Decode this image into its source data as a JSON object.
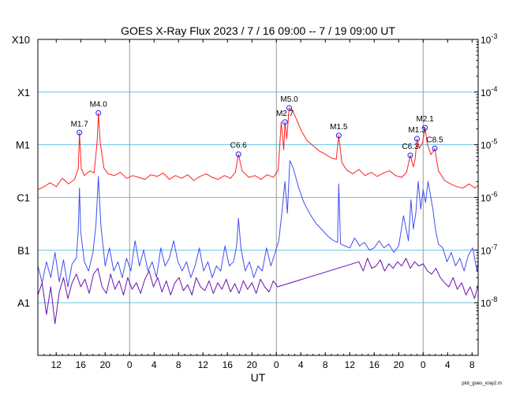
{
  "chart_data": {
    "type": "line",
    "title": "GOES X-Ray Flux   2023  /  7  /  16    09:00 --  7  /  19   09:00    UT",
    "xlabel": "UT",
    "footer": "plot_goes_xray2.m",
    "x_range_hours": [
      0,
      72
    ],
    "x_ticks": [
      {
        "h": 3,
        "label": "12"
      },
      {
        "h": 7,
        "label": "16"
      },
      {
        "h": 11,
        "label": "20"
      },
      {
        "h": 15,
        "label": "0"
      },
      {
        "h": 19,
        "label": "4"
      },
      {
        "h": 23,
        "label": "8"
      },
      {
        "h": 27,
        "label": "12"
      },
      {
        "h": 31,
        "label": "16"
      },
      {
        "h": 35,
        "label": "20"
      },
      {
        "h": 39,
        "label": "0"
      },
      {
        "h": 43,
        "label": "4"
      },
      {
        "h": 47,
        "label": "8"
      },
      {
        "h": 51,
        "label": "12"
      },
      {
        "h": 55,
        "label": "16"
      },
      {
        "h": 59,
        "label": "20"
      },
      {
        "h": 63,
        "label": "0"
      },
      {
        "h": 67,
        "label": "4"
      },
      {
        "h": 71,
        "label": "8"
      }
    ],
    "day_boundaries_hours": [
      15,
      39,
      63
    ],
    "y_log_range": [
      -9,
      -3
    ],
    "y_left_ticks": [
      {
        "exp": -8,
        "label": "A1"
      },
      {
        "exp": -7,
        "label": "B1"
      },
      {
        "exp": -6,
        "label": "C1"
      },
      {
        "exp": -5,
        "label": "M1"
      },
      {
        "exp": -4,
        "label": "X1"
      },
      {
        "exp": -3,
        "label": "X10"
      }
    ],
    "y_right_ticks": [
      {
        "exp": -8,
        "base": "10",
        "sup": "-8"
      },
      {
        "exp": -7,
        "base": "10",
        "sup": "-7"
      },
      {
        "exp": -6,
        "base": "10",
        "sup": "-6"
      },
      {
        "exp": -5,
        "base": "10",
        "sup": "-5"
      },
      {
        "exp": -4,
        "base": "10",
        "sup": "-4"
      },
      {
        "exp": -3,
        "base": "10",
        "sup": "-3"
      }
    ],
    "grid_horizontal_exps": [
      -8,
      -7,
      -6,
      -5,
      -4
    ],
    "colors": {
      "long": "#ff2020",
      "short": "#4050ee",
      "short2": "#6a10b0",
      "grid": "#6cc3e6",
      "day_line": "#999999"
    },
    "flares": [
      {
        "label": "M1.7",
        "t": 6.8,
        "flux": 1.7e-05,
        "dx": 0,
        "dy": -8
      },
      {
        "label": "M4.0",
        "t": 9.9,
        "flux": 4e-05,
        "dx": 0,
        "dy": -8
      },
      {
        "label": "C6.6",
        "t": 32.8,
        "flux": 6.6e-06,
        "dx": 0,
        "dy": -8
      },
      {
        "label": "M2.7",
        "t": 40.4,
        "flux": 2.7e-05,
        "dx": 0,
        "dy": -8
      },
      {
        "label": "M5.0",
        "t": 41.1,
        "flux": 5e-05,
        "dx": 0,
        "dy": -8
      },
      {
        "label": "M1.5",
        "t": 49.2,
        "flux": 1.5e-05,
        "dx": 0,
        "dy": -8
      },
      {
        "label": "C6.3",
        "t": 60.9,
        "flux": 6.3e-06,
        "dx": 0,
        "dy": -8
      },
      {
        "label": "M1.3",
        "t": 62.0,
        "flux": 1.3e-05,
        "dx": 0,
        "dy": -8
      },
      {
        "label": "M2.1",
        "t": 63.3,
        "flux": 2.1e-05,
        "dx": 0,
        "dy": -8
      },
      {
        "label": "C8.5",
        "t": 64.9,
        "flux": 8.5e-06,
        "dx": 0,
        "dy": -8
      }
    ],
    "series": [
      {
        "name": "",
        "key": "long",
        "t": [
          0,
          1,
          2,
          3,
          4,
          5,
          6,
          6.6,
          6.8,
          7.1,
          7.6,
          8.5,
          9.2,
          9.7,
          9.9,
          10.2,
          10.8,
          11.5,
          12.5,
          13.5,
          14.5,
          15.5,
          16.5,
          17.5,
          18.5,
          19.5,
          20.5,
          21.5,
          22.5,
          23.5,
          24.5,
          25.5,
          26.5,
          27.5,
          28.5,
          29.5,
          30.5,
          31.5,
          32.3,
          32.8,
          33.4,
          34.5,
          35.5,
          36.5,
          37.5,
          38.5,
          39.3,
          39.8,
          40.2,
          40.4,
          40.7,
          41.1,
          41.6,
          42.2,
          43,
          44,
          45,
          46,
          47,
          48,
          48.8,
          49.2,
          49.7,
          50.5,
          51.5,
          52.5,
          53.5,
          54.5,
          55.5,
          56.5,
          57.5,
          58.5,
          59.5,
          60.3,
          60.9,
          61.4,
          61.7,
          62.0,
          62.4,
          62.9,
          63.3,
          63.7,
          64.3,
          64.9,
          65.5,
          66.5,
          67.5,
          68.5,
          69.5,
          70.5,
          71.5,
          72
        ],
        "flux": [
          1.4e-06,
          1.6e-06,
          1.9e-06,
          1.6e-06,
          2.3e-06,
          1.8e-06,
          2.2e-06,
          3.5e-06,
          1.7e-05,
          3.5e-06,
          2.6e-06,
          3.2e-06,
          2.9e-06,
          1.2e-05,
          4e-05,
          1.1e-05,
          3.6e-06,
          2.8e-06,
          2.6e-06,
          3e-06,
          2.3e-06,
          2.6e-06,
          2.4e-06,
          2.2e-06,
          2.7e-06,
          2.5e-06,
          2.9e-06,
          2.2e-06,
          2.6e-06,
          2.3e-06,
          2.7e-06,
          2.1e-06,
          2.5e-06,
          2.8e-06,
          2.4e-06,
          2.2e-06,
          2.6e-06,
          2.3e-06,
          3e-06,
          6.6e-06,
          3.2e-06,
          2.4e-06,
          2.6e-06,
          2.2e-06,
          2.7e-06,
          2.4e-06,
          3.3e-06,
          2.7e-05,
          8e-06,
          2.7e-05,
          1.3e-05,
          5e-05,
          4.6e-05,
          3.2e-05,
          1.9e-05,
          1.2e-05,
          9.6e-06,
          7.6e-06,
          6.6e-06,
          5.6e-06,
          5.3e-06,
          1.5e-05,
          4.6e-06,
          3.3e-06,
          2.8e-06,
          3.4e-06,
          2.6e-06,
          3e-06,
          2.5e-06,
          2.9e-06,
          3.2e-06,
          2.6e-06,
          2.4e-06,
          3e-06,
          6.3e-06,
          3.8e-06,
          5.5e-06,
          1.3e-05,
          8.5e-06,
          1.1e-05,
          2.1e-05,
          1e-05,
          6.5e-06,
          8.5e-06,
          3.2e-06,
          2.1e-06,
          1.8e-06,
          1.6e-06,
          1.5e-06,
          1.8e-06,
          1.5e-06,
          1.7e-06
        ]
      },
      {
        "name": "",
        "key": "short",
        "t": [
          0,
          0.7,
          1.4,
          2.1,
          2.8,
          3.5,
          4.2,
          4.9,
          5.6,
          6.3,
          6.6,
          6.8,
          7.0,
          7.6,
          8.3,
          9.0,
          9.5,
          9.9,
          10.3,
          11.0,
          11.7,
          12.4,
          13.1,
          13.8,
          14.5,
          15.2,
          15.9,
          16.6,
          17.3,
          18.0,
          18.7,
          19.4,
          20.1,
          20.8,
          21.5,
          22.2,
          22.9,
          23.6,
          24.3,
          25.0,
          25.7,
          26.4,
          27.1,
          27.8,
          28.5,
          29.2,
          29.9,
          30.6,
          31.3,
          32.0,
          32.5,
          32.8,
          33.2,
          33.9,
          34.6,
          35.3,
          36.0,
          36.7,
          37.4,
          38.1,
          38.8,
          39.4,
          39.9,
          40.4,
          40.8,
          41.2,
          41.8,
          42.6,
          43.5,
          44.5,
          45.5,
          46.5,
          47.5,
          48.4,
          49.0,
          49.2,
          49.5,
          50.2,
          51.0,
          51.8,
          52.6,
          53.4,
          54.2,
          55.0,
          55.8,
          56.6,
          57.4,
          58.2,
          59.0,
          59.8,
          60.6,
          61.0,
          61.4,
          61.8,
          62.2,
          62.6,
          63.0,
          63.4,
          63.8,
          64.2,
          64.6,
          65.0,
          65.5,
          66.2,
          66.9,
          67.6,
          68.3,
          69.0,
          69.7,
          70.4,
          71.1,
          71.8,
          72
        ],
        "flux": [
          5e-08,
          2.4e-08,
          6e-08,
          3e-08,
          9e-08,
          2.5e-08,
          6.5e-08,
          2e-08,
          5.5e-08,
          7e-08,
          2.5e-07,
          1.5e-06,
          2.2e-07,
          6e-08,
          4e-08,
          9e-08,
          3e-07,
          2.5e-06,
          3e-07,
          5e-08,
          1.1e-07,
          4e-08,
          6e-08,
          3e-08,
          7e-08,
          4e-08,
          1.5e-07,
          5e-08,
          1e-07,
          4e-08,
          6e-08,
          3e-08,
          1.1e-07,
          5e-08,
          7e-08,
          1.5e-07,
          6e-08,
          4e-08,
          6e-08,
          3e-08,
          5e-08,
          1.1e-07,
          4e-08,
          6e-08,
          3e-08,
          5e-08,
          4e-08,
          1.2e-07,
          5e-08,
          6e-08,
          1.2e-07,
          4e-07,
          1.1e-07,
          4e-08,
          6e-08,
          3e-08,
          5e-08,
          4e-08,
          1.1e-07,
          5e-08,
          9e-08,
          1.5e-07,
          5e-07,
          2e-06,
          5e-07,
          5e-06,
          3.5e-06,
          1.6e-06,
          8e-07,
          4.8e-07,
          3.2e-07,
          2.4e-07,
          1.8e-07,
          1.5e-07,
          1.4e-07,
          1.8e-06,
          1.3e-07,
          1.2e-07,
          1.1e-07,
          1.7e-07,
          1.2e-07,
          1.4e-07,
          1e-07,
          1.1e-07,
          1.5e-07,
          1.1e-07,
          1.3e-07,
          9e-08,
          1.2e-07,
          4.5e-07,
          1.5e-07,
          9e-07,
          2.5e-07,
          5e-07,
          2e-06,
          6e-07,
          1.4e-06,
          8e-07,
          2e-06,
          1.1e-06,
          6e-07,
          2.5e-07,
          1.3e-07,
          1.1e-07,
          6e-08,
          9e-08,
          5e-08,
          7e-08,
          4e-08,
          8e-08,
          1.1e-07,
          4e-08,
          6e-08
        ]
      },
      {
        "name": "",
        "key": "short2",
        "t": [
          0,
          0.7,
          1.4,
          2.1,
          2.8,
          3.5,
          4.2,
          4.9,
          5.6,
          6.3,
          7.0,
          7.7,
          8.4,
          9.1,
          9.8,
          10.5,
          11.2,
          11.9,
          12.6,
          13.3,
          14.0,
          14.7,
          15.4,
          16.1,
          16.8,
          17.5,
          18.2,
          18.9,
          19.6,
          20.3,
          21.0,
          21.7,
          22.4,
          23.1,
          23.8,
          24.5,
          25.2,
          25.9,
          26.6,
          27.3,
          28.0,
          28.7,
          29.4,
          30.1,
          30.8,
          31.5,
          32.2,
          32.9,
          33.6,
          34.3,
          35.0,
          35.7,
          36.4,
          37.1,
          37.8,
          38.5,
          39.2,
          52.5,
          53.2,
          53.9,
          54.6,
          55.3,
          56.0,
          56.7,
          57.4,
          58.1,
          58.8,
          59.5,
          60.2,
          60.9,
          61.6,
          62.3,
          63.0,
          63.7,
          64.4,
          65.1,
          65.8,
          66.5,
          67.2,
          67.9,
          68.6,
          69.3,
          70.0,
          70.7,
          71.4,
          72
        ],
        "flux": [
          1.4e-08,
          2.4e-08,
          6e-09,
          2e-08,
          4e-09,
          1.6e-08,
          3e-08,
          1.2e-08,
          2.4e-08,
          3.5e-08,
          2e-08,
          2.8e-08,
          1.5e-08,
          3.5e-08,
          4.5e-08,
          2e-08,
          1.5e-08,
          3.5e-08,
          1.8e-08,
          2.6e-08,
          1.4e-08,
          3e-08,
          1.8e-08,
          2.4e-08,
          1.5e-08,
          2.8e-08,
          4e-08,
          2e-08,
          3e-08,
          1.6e-08,
          2.6e-08,
          1.4e-08,
          2.4e-08,
          3e-08,
          1.7e-08,
          2.2e-08,
          1.4e-08,
          3e-08,
          2e-08,
          1.7e-08,
          2.6e-08,
          1.5e-08,
          2.4e-08,
          1.8e-08,
          2.8e-08,
          1.6e-08,
          2.3e-08,
          1.5e-08,
          2.6e-08,
          1.8e-08,
          2.4e-08,
          1.5e-08,
          2.8e-08,
          2e-08,
          1.6e-08,
          2.6e-08,
          2e-08,
          6e-08,
          4e-08,
          7e-08,
          4.5e-08,
          5e-08,
          6.5e-08,
          4e-08,
          5.5e-08,
          4.5e-08,
          6e-08,
          5e-08,
          7e-08,
          4.5e-08,
          6e-08,
          5e-08,
          5.5e-08,
          4e-08,
          3.5e-08,
          4.5e-08,
          3e-08,
          2.4e-08,
          2e-08,
          3e-08,
          1.8e-08,
          2.4e-08,
          1.4e-08,
          2e-08,
          1.2e-08,
          2.2e-08
        ]
      }
    ]
  }
}
